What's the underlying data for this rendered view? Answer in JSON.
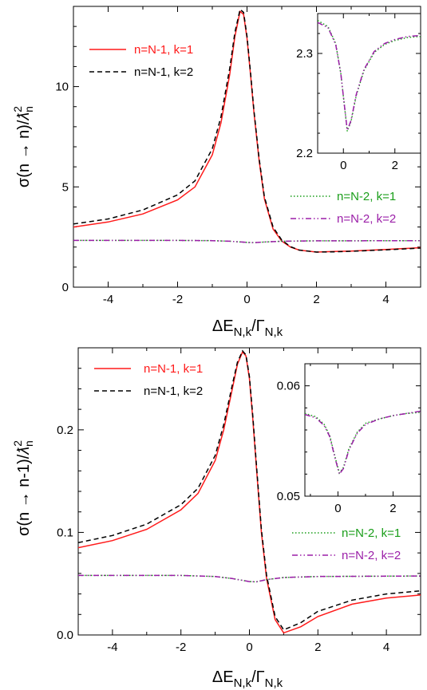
{
  "colors": {
    "red": "#ff1a1a",
    "black": "#000000",
    "green": "#1a9e1a",
    "purple": "#9b1fa8"
  },
  "chart_data": [
    {
      "type": "line",
      "xlabel": "ΔE_N,k/Γ_N,k",
      "ylabel": "σ(n → n)/ƛ²_n",
      "xlabel_parts": {
        "main": "ΔE",
        "sub1": "N,k",
        "slash": "/Γ",
        "sub2": "N,k"
      },
      "ylabel_parts": {
        "main": "σ(n → n)/",
        "lam": "ƛ",
        "sup": "2",
        "sub": "n"
      },
      "xlim": [
        -5,
        5
      ],
      "ylim": [
        0,
        14
      ],
      "xticks": [
        -4,
        -2,
        0,
        2,
        4
      ],
      "yticks": [
        0,
        5,
        10
      ],
      "series": [
        {
          "name": "n=N-1, k=1",
          "color": "#ff1a1a",
          "dash": "solid",
          "legend": "main",
          "x": [
            -5,
            -4,
            -3,
            -2,
            -1.5,
            -1,
            -0.75,
            -0.5,
            -0.35,
            -0.2,
            -0.1,
            0,
            0.1,
            0.2,
            0.35,
            0.5,
            0.75,
            1,
            1.25,
            1.5,
            2,
            2.5,
            3,
            4,
            5
          ],
          "y": [
            3.0,
            3.25,
            3.65,
            4.35,
            5.0,
            6.6,
            8.2,
            10.6,
            12.5,
            13.75,
            13.6,
            12.4,
            10.6,
            8.7,
            6.3,
            4.4,
            2.9,
            2.3,
            2.0,
            1.85,
            1.75,
            1.78,
            1.8,
            1.88,
            1.97
          ]
        },
        {
          "name": "n=N-1, k=2",
          "color": "#000000",
          "dash": "dashed",
          "legend": "main",
          "x": [
            -5,
            -4,
            -3,
            -2,
            -1.5,
            -1,
            -0.75,
            -0.5,
            -0.35,
            -0.2,
            -0.1,
            0,
            0.1,
            0.2,
            0.35,
            0.5,
            0.75,
            1,
            1.25,
            1.5,
            2,
            2.5,
            3,
            4,
            5
          ],
          "y": [
            3.15,
            3.4,
            3.85,
            4.6,
            5.3,
            6.9,
            8.5,
            10.9,
            12.7,
            13.85,
            13.7,
            12.5,
            10.7,
            8.8,
            6.4,
            4.5,
            3.0,
            2.35,
            2.02,
            1.85,
            1.75,
            1.76,
            1.79,
            1.86,
            1.95
          ]
        },
        {
          "name": "n=N-2, k=1",
          "color": "#1a9e1a",
          "dash": "dotted",
          "legend": "lower",
          "x": [
            -5,
            -2,
            -1,
            -0.5,
            0,
            0.2,
            0.5,
            1,
            2,
            5
          ],
          "y": [
            2.33,
            2.33,
            2.32,
            2.29,
            2.23,
            2.22,
            2.25,
            2.29,
            2.31,
            2.32
          ]
        },
        {
          "name": "n=N-2, k=2",
          "color": "#9b1fa8",
          "dash": "dashdotdot",
          "legend": "lower",
          "x": [
            -5,
            -2,
            -1,
            -0.5,
            0,
            0.2,
            0.5,
            1,
            2,
            5
          ],
          "y": [
            2.33,
            2.33,
            2.32,
            2.29,
            2.23,
            2.22,
            2.25,
            2.29,
            2.31,
            2.32
          ]
        }
      ],
      "inset": {
        "xlim": [
          -1,
          3
        ],
        "ylim": [
          2.2,
          2.34
        ],
        "xticks": [
          0,
          2
        ],
        "yticks": [
          2.2,
          2.3
        ],
        "ytick_labels": [
          "2.2",
          "2.3"
        ],
        "series": [
          {
            "name": "n=N-2, k=1",
            "color": "#1a9e1a",
            "dash": "dotted",
            "x": [
              -1,
              -0.6,
              -0.3,
              -0.1,
              0.05,
              0.15,
              0.3,
              0.5,
              0.8,
              1.2,
              1.6,
              2.0,
              2.5,
              3.0
            ],
            "y": [
              2.333,
              2.327,
              2.31,
              2.28,
              2.245,
              2.222,
              2.232,
              2.258,
              2.283,
              2.301,
              2.309,
              2.313,
              2.316,
              2.317
            ]
          },
          {
            "name": "n=N-2, k=2",
            "color": "#9b1fa8",
            "dash": "dashdotdot",
            "x": [
              -1,
              -0.6,
              -0.3,
              -0.1,
              0.05,
              0.15,
              0.3,
              0.5,
              0.8,
              1.2,
              1.6,
              2.0,
              2.5,
              3.0
            ],
            "y": [
              2.331,
              2.326,
              2.309,
              2.28,
              2.245,
              2.223,
              2.233,
              2.259,
              2.284,
              2.302,
              2.31,
              2.314,
              2.317,
              2.318
            ]
          }
        ]
      }
    },
    {
      "type": "line",
      "xlabel": "ΔE_N,k/Γ_N,k",
      "ylabel": "σ(n → n-1)/ƛ²_n",
      "xlabel_parts": {
        "main": "ΔE",
        "sub1": "N,k",
        "slash": "/Γ",
        "sub2": "N,k"
      },
      "ylabel_parts": {
        "main": "σ(n → n-1)/",
        "lam": "ƛ",
        "sup": "2",
        "sub": "n"
      },
      "xlim": [
        -5,
        5
      ],
      "ylim": [
        0,
        0.28
      ],
      "xticks": [
        -4,
        -2,
        0,
        2,
        4
      ],
      "yticks": [
        0,
        0.1,
        0.2
      ],
      "ytick_labels": [
        "0.0",
        "0.1",
        "0.2"
      ],
      "series": [
        {
          "name": "n=N-1, k=1",
          "color": "#ff1a1a",
          "dash": "solid",
          "legend": "main",
          "x": [
            -5,
            -4,
            -3,
            -2,
            -1.5,
            -1,
            -0.75,
            -0.5,
            -0.35,
            -0.2,
            -0.1,
            0,
            0.1,
            0.2,
            0.35,
            0.5,
            0.75,
            1,
            1.5,
            2,
            3,
            4,
            5
          ],
          "y": [
            0.085,
            0.092,
            0.103,
            0.122,
            0.138,
            0.17,
            0.2,
            0.24,
            0.264,
            0.276,
            0.272,
            0.25,
            0.21,
            0.165,
            0.1,
            0.055,
            0.015,
            0.002,
            0.008,
            0.018,
            0.03,
            0.036,
            0.039
          ]
        },
        {
          "name": "n=N-1, k=2",
          "color": "#000000",
          "dash": "dashed",
          "legend": "main",
          "x": [
            -5,
            -4,
            -3,
            -2,
            -1.5,
            -1,
            -0.75,
            -0.5,
            -0.35,
            -0.2,
            -0.1,
            0,
            0.1,
            0.2,
            0.35,
            0.5,
            0.75,
            1,
            1.5,
            2,
            3,
            4,
            5
          ],
          "y": [
            0.09,
            0.097,
            0.108,
            0.127,
            0.143,
            0.175,
            0.205,
            0.244,
            0.266,
            0.277,
            0.273,
            0.252,
            0.213,
            0.168,
            0.103,
            0.058,
            0.018,
            0.005,
            0.012,
            0.023,
            0.034,
            0.04,
            0.043
          ]
        },
        {
          "name": "n=N-2, k=1",
          "color": "#1a9e1a",
          "dash": "dotted",
          "legend": "lower",
          "x": [
            -5,
            -2,
            -1,
            -0.5,
            0,
            0.2,
            0.5,
            1,
            2,
            5
          ],
          "y": [
            0.058,
            0.058,
            0.057,
            0.055,
            0.052,
            0.0518,
            0.054,
            0.056,
            0.057,
            0.0575
          ]
        },
        {
          "name": "n=N-2, k=2",
          "color": "#9b1fa8",
          "dash": "dashdotdot",
          "legend": "lower",
          "x": [
            -5,
            -2,
            -1,
            -0.5,
            0,
            0.2,
            0.5,
            1,
            2,
            5
          ],
          "y": [
            0.058,
            0.058,
            0.057,
            0.055,
            0.052,
            0.0518,
            0.054,
            0.056,
            0.057,
            0.0575
          ]
        }
      ],
      "inset": {
        "xlim": [
          -1.2,
          3
        ],
        "ylim": [
          0.05,
          0.062
        ],
        "xticks": [
          0,
          2
        ],
        "yticks": [
          0.05,
          0.06
        ],
        "ytick_labels": [
          "0.05",
          "0.06"
        ],
        "series": [
          {
            "name": "n=N-2, k=1",
            "color": "#1a9e1a",
            "dash": "dotted",
            "x": [
              -1.2,
              -0.8,
              -0.5,
              -0.3,
              -0.1,
              0.05,
              0.2,
              0.4,
              0.7,
              1.0,
              1.5,
              2.0,
              2.5,
              3.0
            ],
            "y": [
              0.0575,
              0.0572,
              0.0565,
              0.0555,
              0.0535,
              0.0521,
              0.0526,
              0.0543,
              0.0558,
              0.0566,
              0.057,
              0.0573,
              0.0575,
              0.0576
            ]
          },
          {
            "name": "n=N-2, k=2",
            "color": "#9b1fa8",
            "dash": "dashdotdot",
            "x": [
              -1.2,
              -0.8,
              -0.5,
              -0.3,
              -0.1,
              0.05,
              0.2,
              0.4,
              0.7,
              1.0,
              1.5,
              2.0,
              2.5,
              3.0
            ],
            "y": [
              0.0574,
              0.0571,
              0.0564,
              0.0554,
              0.0534,
              0.052,
              0.0525,
              0.0542,
              0.0557,
              0.0565,
              0.057,
              0.0573,
              0.0575,
              0.0577
            ]
          }
        ]
      }
    }
  ]
}
